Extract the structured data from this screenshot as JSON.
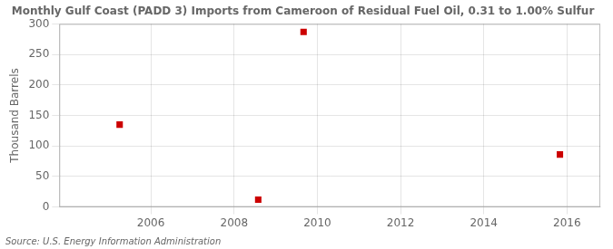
{
  "chart_data": {
    "type": "scatter",
    "title": "Monthly Gulf Coast (PADD 3) Imports from Cameroon of Residual Fuel Oil, 0.31 to 1.00% Sulfur",
    "ylabel": "Thousand Barrels",
    "annotation": "Source: U.S. Energy Information Administration",
    "x": [
      2005.25,
      2008.58,
      2009.67,
      2015.83
    ],
    "values": [
      135,
      12,
      287,
      86
    ],
    "color": "#cc0000",
    "marker": "square",
    "xlim": [
      2003.8,
      2016.8
    ],
    "ylim": [
      0,
      300
    ],
    "xticks": [
      2006,
      2008,
      2010,
      2012,
      2014,
      2016
    ],
    "yticks": [
      0,
      50,
      100,
      150,
      200,
      250,
      300
    ],
    "grid": true
  }
}
